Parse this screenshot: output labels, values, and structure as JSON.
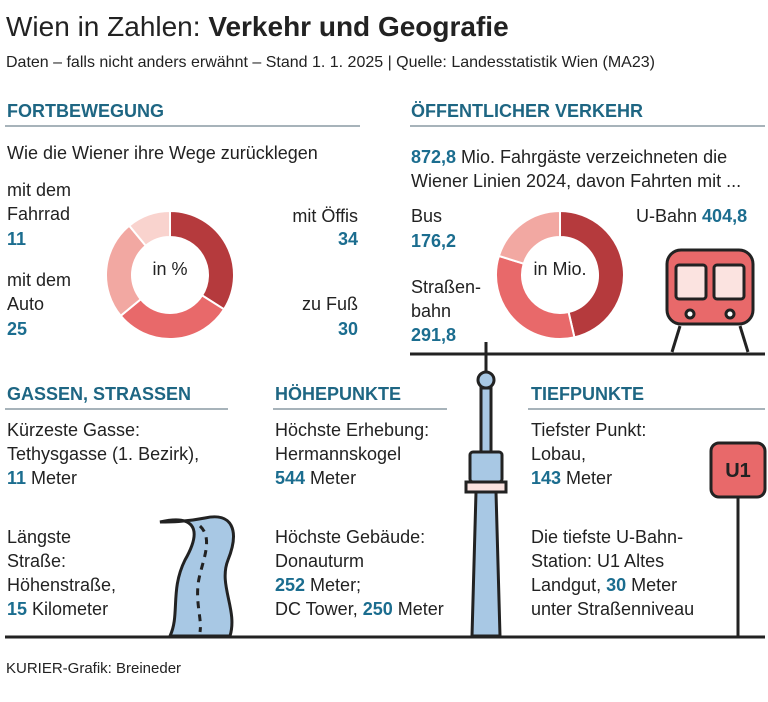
{
  "header": {
    "title_regular": "Wien in Zahlen: ",
    "title_bold": "Verkehr und Geografie",
    "subtitle": "Daten – falls nicht anders erwähnt – Stand 1. 1. 2025 | Quelle: Landesstatistik Wien (MA23)"
  },
  "sections": {
    "left": "FORTBEWEGUNG",
    "right": "ÖFFENTLICHER VERKEHR"
  },
  "chart_data": [
    {
      "type": "pie",
      "donut": true,
      "title": "Wie die Wiener ihre Wege zurücklegen",
      "center_label": "in %",
      "categories": [
        "mit Öffis",
        "zu Fuß",
        "mit dem Auto",
        "mit dem Fahrrad"
      ],
      "values": [
        34,
        30,
        25,
        11
      ],
      "colors": [
        "#b53a3d",
        "#e8696a",
        "#f2a8a2",
        "#f9d3ce"
      ]
    },
    {
      "type": "pie",
      "donut": true,
      "center_label": "in Mio.",
      "intro": [
        {
          "text": "872,8",
          "strong": true
        },
        {
          "text": " Mio. Fahrgäste verzeichneten die\nWiener Linien 2024, davon Fahrten mit ...",
          "strong": false
        }
      ],
      "categories": [
        "U-Bahn",
        "Straßen­bahn",
        "Bus"
      ],
      "values": [
        404.8,
        291.8,
        176.2
      ],
      "value_labels": [
        "404,8",
        "291,8",
        "176,2"
      ],
      "colors": [
        "#b53a3d",
        "#e8696a",
        "#f2a8a2"
      ]
    }
  ],
  "bottom": [
    {
      "header": "GASSEN, STRASSEN",
      "paragraphs": [
        [
          {
            "text": "Kürzeste Gasse:\nTethysgasse (1. Bezirk),\n",
            "strong": false
          },
          {
            "text": "11",
            "strong": true
          },
          {
            "text": " Meter",
            "strong": false
          }
        ],
        [
          {
            "text": "Längste\nStraße:\nHöhenstraße,\n",
            "strong": false
          },
          {
            "text": "15",
            "strong": true
          },
          {
            "text": " Kilometer",
            "strong": false
          }
        ]
      ]
    },
    {
      "header": "HÖHEPUNKTE",
      "paragraphs": [
        [
          {
            "text": "Höchste Erhebung:\nHermannskogel\n",
            "strong": false
          },
          {
            "text": "544",
            "strong": true
          },
          {
            "text": " Meter",
            "strong": false
          }
        ],
        [
          {
            "text": "Höchste Gebäude:\nDonauturm\n",
            "strong": false
          },
          {
            "text": "252",
            "strong": true
          },
          {
            "text": " Meter;\nDC Tower, ",
            "strong": false
          },
          {
            "text": "250",
            "strong": true
          },
          {
            "text": " Meter",
            "strong": false
          }
        ]
      ]
    },
    {
      "header": "TIEFPUNKTE",
      "paragraphs": [
        [
          {
            "text": "Tiefster Punkt:\nLobau,\n",
            "strong": false
          },
          {
            "text": "143",
            "strong": true
          },
          {
            "text": " Meter",
            "strong": false
          }
        ],
        [
          {
            "text": "Die tiefste U-Bahn-\nStation: U1 Altes\nLandgut, ",
            "strong": false
          },
          {
            "text": "30",
            "strong": true
          },
          {
            "text": " Meter\nunter Straßenniveau",
            "strong": false
          }
        ]
      ]
    }
  ],
  "icons": {
    "sign": "U1"
  },
  "footer": "KURIER-Grafik: Breineder"
}
